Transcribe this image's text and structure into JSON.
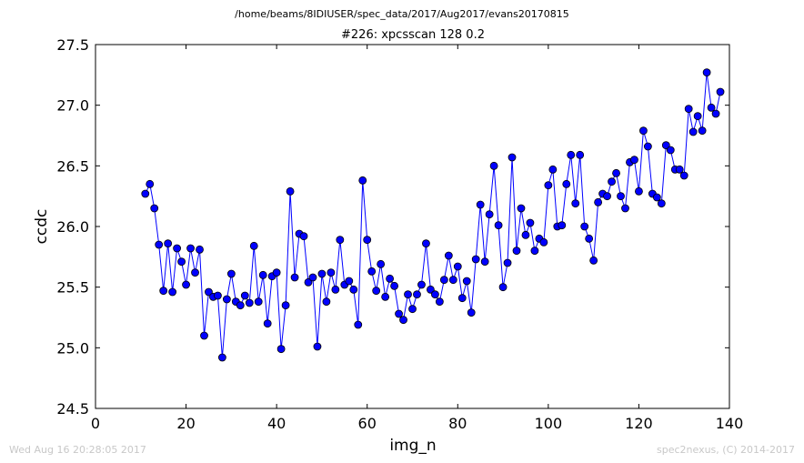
{
  "figure": {
    "suptitle": "/home/beams/8IDIUSER/spec_data/2017/Aug2017/evans20170815",
    "timestamp": "Wed Aug 16 20:28:05 2017",
    "credit": "spec2nexus, (C) 2014-2017"
  },
  "chart_data": {
    "type": "line",
    "title": "#226: xpcsscan 128 0.2",
    "xlabel": "img_n",
    "ylabel": "ccdc",
    "xlim": [
      0,
      140
    ],
    "ylim": [
      24.5,
      27.5
    ],
    "xticks": [
      0,
      20,
      40,
      60,
      80,
      100,
      120,
      140
    ],
    "xtick_labels": [
      "0",
      "20",
      "40",
      "60",
      "80",
      "100",
      "120",
      "140"
    ],
    "yticks": [
      24.5,
      25.0,
      25.5,
      26.0,
      26.5,
      27.0,
      27.5
    ],
    "ytick_labels": [
      "24.5",
      "25.0",
      "25.5",
      "26.0",
      "26.5",
      "27.0",
      "27.5"
    ],
    "grid": false,
    "marker": "circle",
    "series": [
      {
        "color": "#0000ff",
        "x": [
          11,
          12,
          13,
          14,
          15,
          16,
          17,
          18,
          19,
          20,
          21,
          22,
          23,
          24,
          25,
          26,
          27,
          28,
          29,
          30,
          31,
          32,
          33,
          34,
          35,
          36,
          37,
          38,
          39,
          40,
          41,
          42,
          43,
          44,
          45,
          46,
          47,
          48,
          49,
          50,
          51,
          52,
          53,
          54,
          55,
          56,
          57,
          58,
          59,
          60,
          61,
          62,
          63,
          64,
          65,
          66,
          67,
          68,
          69,
          70,
          71,
          72,
          73,
          74,
          75,
          76,
          77,
          78,
          79,
          80,
          81,
          82,
          83,
          84,
          85,
          86,
          87,
          88,
          89,
          90,
          91,
          92,
          93,
          94,
          95,
          96,
          97,
          98,
          99,
          100,
          101,
          102,
          103,
          104,
          105,
          106,
          107,
          108,
          109,
          110,
          111,
          112,
          113,
          114,
          115,
          116,
          117,
          118,
          119,
          120,
          121,
          122,
          123,
          124,
          125,
          126,
          127,
          128,
          129,
          130,
          131,
          132,
          133,
          134,
          135,
          136,
          137,
          138
        ],
        "y": [
          26.27,
          26.35,
          26.15,
          25.85,
          25.47,
          25.86,
          25.46,
          25.82,
          25.71,
          25.52,
          25.82,
          25.62,
          25.81,
          25.1,
          25.46,
          25.42,
          25.43,
          24.92,
          25.4,
          25.61,
          25.38,
          25.35,
          25.43,
          25.37,
          25.84,
          25.38,
          25.6,
          25.2,
          25.59,
          25.62,
          24.99,
          25.35,
          26.29,
          25.58,
          25.94,
          25.92,
          25.54,
          25.58,
          25.01,
          25.61,
          25.38,
          25.62,
          25.48,
          25.89,
          25.52,
          25.55,
          25.48,
          25.19,
          26.38,
          25.89,
          25.63,
          25.47,
          25.69,
          25.42,
          25.57,
          25.51,
          25.28,
          25.23,
          25.44,
          25.32,
          25.44,
          25.52,
          25.86,
          25.48,
          25.44,
          25.38,
          25.56,
          25.76,
          25.56,
          25.67,
          25.41,
          25.55,
          25.29,
          25.73,
          26.18,
          25.71,
          26.1,
          26.5,
          26.01,
          25.5,
          25.7,
          26.57,
          25.8,
          26.15,
          25.93,
          26.03,
          25.8,
          25.9,
          25.87,
          26.34,
          26.47,
          26.0,
          26.01,
          26.35,
          26.59,
          26.19,
          26.59,
          26.0,
          25.9,
          25.72,
          26.2,
          26.27,
          26.25,
          26.37,
          26.44,
          26.25,
          26.15,
          26.53,
          26.55,
          26.29,
          26.79,
          26.66,
          26.27,
          26.24,
          26.19,
          26.67,
          26.63,
          26.47,
          26.47,
          26.42,
          26.97,
          26.78,
          26.91,
          26.79,
          27.27,
          26.98,
          26.93,
          27.11
        ]
      }
    ]
  }
}
